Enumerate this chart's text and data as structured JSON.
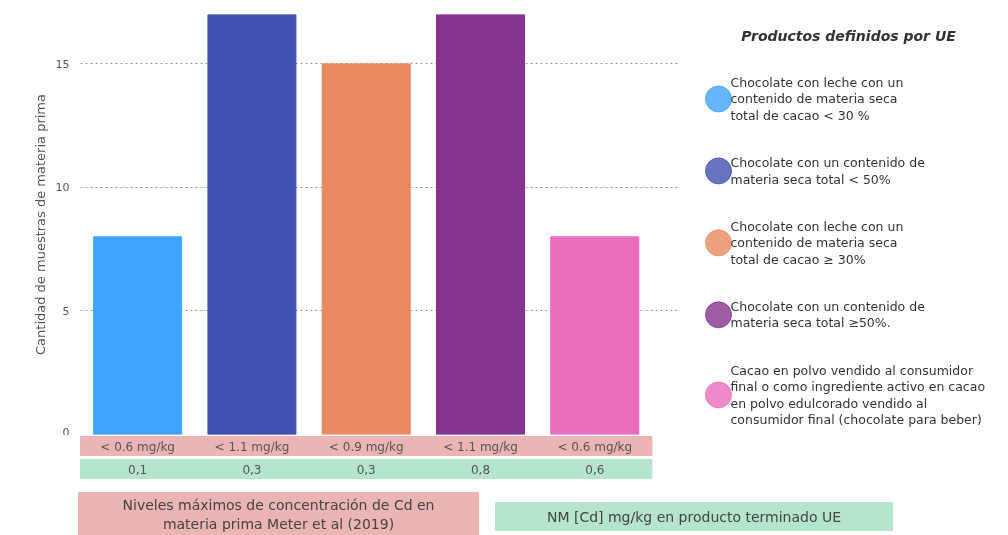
{
  "chart_data": {
    "type": "bar",
    "ylabel": "Cantidad de muestras de materia prima",
    "legend_title": "Productos definidos por UE",
    "categories": [
      "< 0.6 mg/kg",
      "< 1.1 mg/kg",
      "< 0.9 mg/kg",
      "< 1.1 mg/kg",
      "< 0.6 mg/kg"
    ],
    "series": [
      {
        "name": "Chocolate con leche con un contenido de materia seca total de cacao < 30 %",
        "color": "#3fa4fc",
        "values": [
          8,
          null,
          null,
          null,
          null
        ]
      },
      {
        "name": "Chocolate con un contenido de materia seca total < 50%",
        "color": "#4150b0",
        "values": [
          null,
          17,
          null,
          null,
          null
        ]
      },
      {
        "name": "Chocolate con leche con un contenido de materia seca total de cacao ≥ 30%",
        "color": "#e9895f",
        "values": [
          null,
          null,
          15,
          null,
          null
        ]
      },
      {
        "name": "Chocolate con un contenido de materia seca total ≥50%.",
        "color": "#86338f",
        "values": [
          null,
          null,
          null,
          17,
          null
        ]
      },
      {
        "name": "Cacao en polvo vendido al consumidor final o como ingrediente activo en cacao en polvo edulcorado vendido al consumidor final (chocolate para beber)",
        "color": "#eb6bbd",
        "values": [
          null,
          null,
          null,
          null,
          8
        ]
      }
    ],
    "ylim": [
      0,
      17
    ],
    "yticks": [
      0,
      5,
      10,
      15
    ],
    "grid": "y",
    "legend": "right",
    "annotations": [
      "0,1",
      "0,3",
      "0,3",
      "0,8",
      "0,6",
      "Niveles máximos de concentración de Cd en materia prima Meter et al (2019)",
      "NM [Cd] mg/kg en producto terminado UE"
    ]
  }
}
